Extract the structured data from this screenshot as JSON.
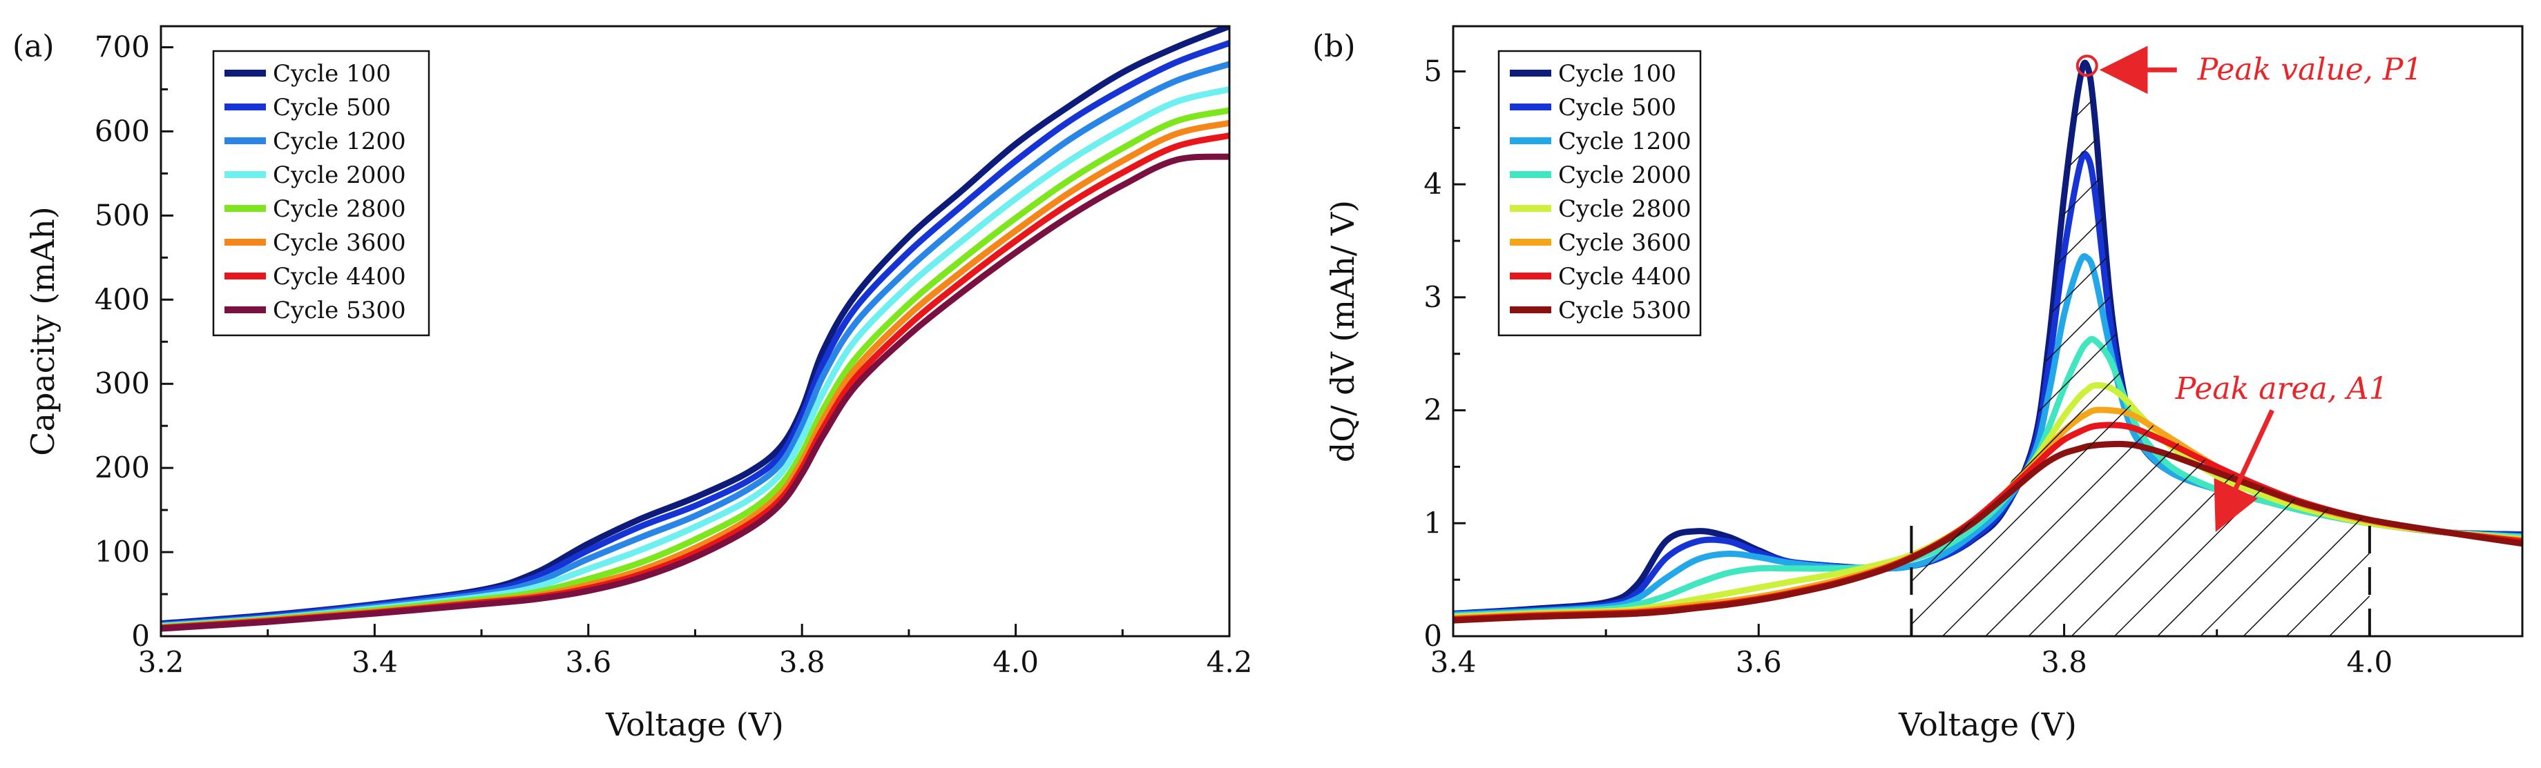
{
  "chart_data": [
    {
      "type": "line",
      "panel_label": "(a)",
      "xlabel": "Voltage (V)",
      "ylabel": "Capacity (mAh)",
      "xlim": [
        3.2,
        4.2
      ],
      "ylim": [
        0,
        725
      ],
      "xticks": [
        3.2,
        3.4,
        3.6,
        3.8,
        4.0,
        4.2
      ],
      "xtick_labels": [
        "3.2",
        "3.4",
        "3.6",
        "3.8",
        "4.0",
        "4.2"
      ],
      "yticks": [
        0,
        100,
        200,
        300,
        400,
        500,
        600,
        700
      ],
      "ytick_labels": [
        "0",
        "100",
        "200",
        "300",
        "400",
        "500",
        "600",
        "700"
      ],
      "legend_position": "top-left",
      "x": [
        3.2,
        3.3,
        3.4,
        3.5,
        3.55,
        3.6,
        3.65,
        3.7,
        3.75,
        3.78,
        3.8,
        3.82,
        3.85,
        3.9,
        3.95,
        4.0,
        4.05,
        4.1,
        4.15,
        4.2
      ],
      "series": [
        {
          "name": "Cycle 100",
          "color": "#0d1b7a",
          "values": [
            15,
            25,
            38,
            55,
            75,
            110,
            140,
            165,
            195,
            225,
            270,
            340,
            405,
            475,
            530,
            585,
            630,
            670,
            700,
            725
          ]
        },
        {
          "name": "Cycle 500",
          "color": "#1633d6",
          "values": [
            14,
            24,
            37,
            53,
            70,
            102,
            131,
            155,
            185,
            215,
            262,
            325,
            390,
            457,
            512,
            565,
            612,
            650,
            682,
            705
          ]
        },
        {
          "name": "Cycle 1200",
          "color": "#2a86e6",
          "values": [
            13,
            22,
            35,
            50,
            64,
            92,
            118,
            143,
            175,
            205,
            250,
            310,
            372,
            437,
            492,
            543,
            590,
            628,
            660,
            680
          ]
        },
        {
          "name": "Cycle 2000",
          "color": "#6ff0f0",
          "values": [
            12,
            21,
            33,
            47,
            58,
            80,
            103,
            130,
            162,
            193,
            235,
            290,
            352,
            417,
            470,
            520,
            565,
            603,
            635,
            650
          ]
        },
        {
          "name": "Cycle 2800",
          "color": "#7ee61c",
          "values": [
            11,
            20,
            31,
            44,
            52,
            68,
            88,
            115,
            148,
            180,
            218,
            270,
            330,
            395,
            448,
            497,
            542,
            580,
            612,
            625
          ]
        },
        {
          "name": "Cycle 3600",
          "color": "#f5861a",
          "values": [
            10,
            19,
            29,
            41,
            48,
            61,
            79,
            105,
            139,
            170,
            208,
            258,
            318,
            382,
            434,
            482,
            527,
            565,
            597,
            610
          ]
        },
        {
          "name": "Cycle 4400",
          "color": "#e8151a",
          "values": [
            10,
            18,
            28,
            40,
            46,
            57,
            74,
            99,
            133,
            163,
            200,
            248,
            307,
            370,
            422,
            470,
            514,
            551,
            582,
            595
          ]
        },
        {
          "name": "Cycle 5300",
          "color": "#7a1040",
          "values": [
            9,
            17,
            27,
            38,
            44,
            54,
            70,
            94,
            127,
            157,
            193,
            239,
            297,
            358,
            409,
            456,
            499,
            536,
            566,
            570
          ]
        }
      ]
    },
    {
      "type": "line",
      "panel_label": "(b)",
      "xlabel": "Voltage (V)",
      "ylabel": "dQ/ dV (mAh/ V)",
      "xlim": [
        3.4,
        4.1
      ],
      "ylim": [
        0,
        5.4
      ],
      "xticks": [
        3.4,
        3.6,
        3.8,
        4.0
      ],
      "xtick_labels": [
        "3.4",
        "3.6",
        "3.8",
        "4.0"
      ],
      "yticks": [
        0,
        1,
        2,
        3,
        4,
        5
      ],
      "ytick_labels": [
        "0",
        "1",
        "2",
        "3",
        "4",
        "5"
      ],
      "legend_position": "top-left",
      "x": [
        3.4,
        3.45,
        3.5,
        3.52,
        3.54,
        3.56,
        3.58,
        3.6,
        3.62,
        3.65,
        3.68,
        3.7,
        3.72,
        3.74,
        3.76,
        3.78,
        3.79,
        3.8,
        3.81,
        3.815,
        3.82,
        3.83,
        3.84,
        3.85,
        3.87,
        3.9,
        3.93,
        3.96,
        4.0,
        4.05,
        4.1
      ],
      "series": [
        {
          "name": "Cycle 100",
          "color": "#0d1b7a",
          "values": [
            0.2,
            0.24,
            0.3,
            0.45,
            0.85,
            0.93,
            0.88,
            0.76,
            0.66,
            0.62,
            0.6,
            0.62,
            0.7,
            0.85,
            1.1,
            1.7,
            2.6,
            3.9,
            4.9,
            5.05,
            4.6,
            3.0,
            2.1,
            1.7,
            1.45,
            1.3,
            1.2,
            1.1,
            1.0,
            0.92,
            0.9
          ]
        },
        {
          "name": "Cycle 500",
          "color": "#1633d6",
          "values": [
            0.2,
            0.23,
            0.28,
            0.38,
            0.7,
            0.84,
            0.84,
            0.74,
            0.66,
            0.62,
            0.6,
            0.62,
            0.7,
            0.86,
            1.12,
            1.65,
            2.4,
            3.4,
            4.15,
            4.25,
            3.95,
            2.8,
            2.05,
            1.7,
            1.45,
            1.3,
            1.2,
            1.1,
            1.0,
            0.92,
            0.9
          ]
        },
        {
          "name": "Cycle 1200",
          "color": "#22a8e8",
          "values": [
            0.19,
            0.22,
            0.26,
            0.33,
            0.52,
            0.68,
            0.73,
            0.7,
            0.65,
            0.61,
            0.6,
            0.62,
            0.72,
            0.9,
            1.15,
            1.6,
            2.15,
            2.85,
            3.3,
            3.35,
            3.2,
            2.55,
            2.0,
            1.7,
            1.45,
            1.3,
            1.2,
            1.1,
            1.0,
            0.92,
            0.88
          ]
        },
        {
          "name": "Cycle 2000",
          "color": "#3fe6c0",
          "values": [
            0.18,
            0.21,
            0.24,
            0.28,
            0.36,
            0.47,
            0.56,
            0.6,
            0.6,
            0.6,
            0.62,
            0.68,
            0.78,
            0.95,
            1.2,
            1.55,
            1.85,
            2.2,
            2.5,
            2.6,
            2.62,
            2.45,
            2.1,
            1.8,
            1.5,
            1.3,
            1.2,
            1.1,
            1.0,
            0.92,
            0.88
          ]
        },
        {
          "name": "Cycle 2800",
          "color": "#cdf03a",
          "values": [
            0.17,
            0.2,
            0.22,
            0.24,
            0.28,
            0.33,
            0.38,
            0.43,
            0.48,
            0.55,
            0.64,
            0.72,
            0.85,
            1.02,
            1.25,
            1.55,
            1.75,
            1.95,
            2.12,
            2.18,
            2.22,
            2.2,
            2.1,
            1.95,
            1.68,
            1.42,
            1.25,
            1.12,
            1.0,
            0.92,
            0.86
          ]
        },
        {
          "name": "Cycle 3600",
          "color": "#f5a51a",
          "values": [
            0.16,
            0.19,
            0.21,
            0.22,
            0.25,
            0.28,
            0.31,
            0.35,
            0.4,
            0.49,
            0.6,
            0.7,
            0.84,
            1.02,
            1.25,
            1.52,
            1.68,
            1.82,
            1.93,
            1.97,
            2.0,
            2.0,
            1.98,
            1.92,
            1.75,
            1.5,
            1.3,
            1.15,
            1.02,
            0.92,
            0.85
          ]
        },
        {
          "name": "Cycle 4400",
          "color": "#e8151a",
          "values": [
            0.15,
            0.18,
            0.2,
            0.21,
            0.23,
            0.26,
            0.29,
            0.33,
            0.38,
            0.47,
            0.59,
            0.7,
            0.84,
            1.02,
            1.25,
            1.5,
            1.63,
            1.74,
            1.81,
            1.84,
            1.86,
            1.87,
            1.86,
            1.82,
            1.7,
            1.5,
            1.32,
            1.17,
            1.03,
            0.92,
            0.84
          ]
        },
        {
          "name": "Cycle 5300",
          "color": "#8b1010",
          "values": [
            0.14,
            0.17,
            0.19,
            0.2,
            0.22,
            0.25,
            0.28,
            0.32,
            0.37,
            0.46,
            0.58,
            0.69,
            0.83,
            1.0,
            1.22,
            1.45,
            1.55,
            1.62,
            1.66,
            1.68,
            1.69,
            1.7,
            1.7,
            1.68,
            1.6,
            1.45,
            1.3,
            1.16,
            1.03,
            0.92,
            0.82
          ]
        }
      ],
      "shaded_region": {
        "x_start": 3.7,
        "x_end": 4.0,
        "pattern": "diagonal hatch"
      },
      "annotations": [
        {
          "text": "Peak value, P1",
          "target_x": 3.815,
          "target_y": 5.05
        },
        {
          "text": "Peak area, A1",
          "target_x": 3.9,
          "target_y": 1.0
        }
      ]
    }
  ]
}
